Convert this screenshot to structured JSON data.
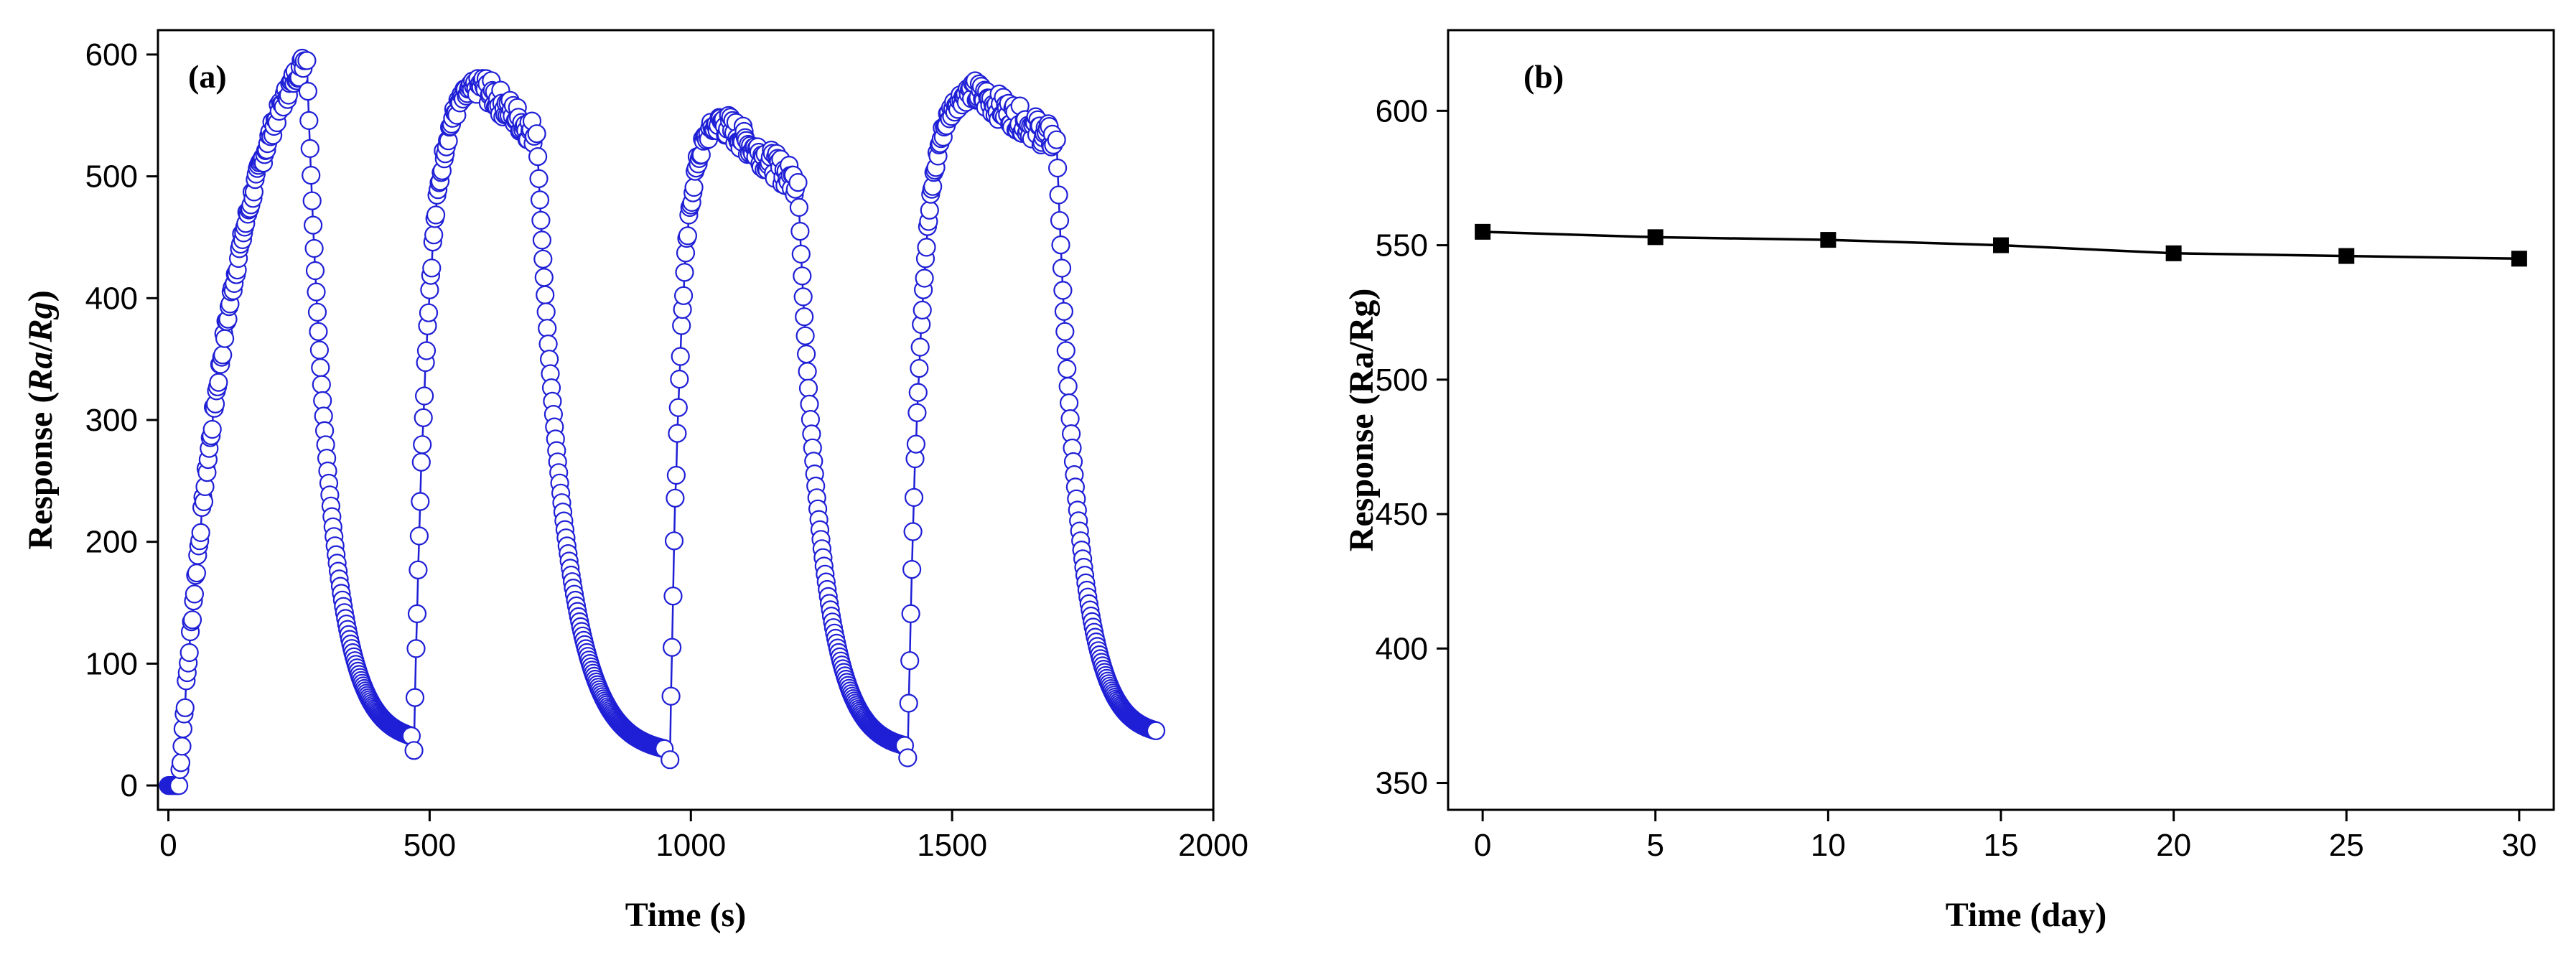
{
  "colors": {
    "series_a": "#1f1fd6",
    "series_b": "#000000",
    "axis": "#000000",
    "background": "#ffffff"
  },
  "chart_data": [
    {
      "id": "a",
      "type": "scatter",
      "panel_label": "(a)",
      "xlabel": "Time (s)",
      "ylabel_parts": [
        "Response (",
        "Ra",
        "/",
        "Rg",
        ")"
      ],
      "xlim": [
        -20,
        2000
      ],
      "ylim": [
        -20,
        620
      ],
      "xticks": [
        0,
        500,
        1000,
        1500,
        2000
      ],
      "yticks": [
        0,
        100,
        200,
        300,
        400,
        500,
        600
      ],
      "xtick_labels": [
        "0",
        "500",
        "1000",
        "1500",
        "2000"
      ],
      "ytick_labels": [
        "0",
        "100",
        "200",
        "300",
        "400",
        "500",
        "600"
      ],
      "marker": "open-circle",
      "series": [
        {
          "name": "response",
          "cycles": [
            {
              "inject_on": 20,
              "peak_time": 260,
              "peak": 595,
              "release": 265,
              "end": 465,
              "baseline_end": 35,
              "rise_shape": "linear-ish"
            },
            {
              "inject_on": 470,
              "peak_time": 600,
              "peak": 575,
              "plateau_end": 700,
              "plateau_drop": 40,
              "release": 705,
              "end": 950,
              "baseline_end": 25
            },
            {
              "inject_on": 960,
              "peak_time": 1060,
              "peak": 545,
              "plateau_end": 1200,
              "plateau_drop": 50,
              "release": 1205,
              "end": 1410,
              "baseline_end": 28
            },
            {
              "inject_on": 1415,
              "peak_time": 1540,
              "peak": 570,
              "plateau_end": 1695,
              "plateau_drop": 40,
              "release": 1700,
              "end": 1890,
              "baseline_end": 40
            }
          ],
          "sample_interval_s": 2,
          "initial_baseline": 0
        }
      ]
    },
    {
      "id": "b",
      "type": "line",
      "panel_label": "(b)",
      "xlabel": "Time (day)",
      "ylabel": "Response (Ra/Rg)",
      "xlim": [
        -1,
        31
      ],
      "ylim": [
        340,
        630
      ],
      "xticks": [
        0,
        5,
        10,
        15,
        20,
        25,
        30
      ],
      "yticks": [
        350,
        400,
        450,
        500,
        550,
        600
      ],
      "xtick_labels": [
        "0",
        "5",
        "10",
        "15",
        "20",
        "25",
        "30"
      ],
      "ytick_labels": [
        "350",
        "400",
        "450",
        "500",
        "550",
        "600"
      ],
      "marker": "filled-square",
      "series": [
        {
          "name": "response",
          "x": [
            0,
            5,
            10,
            15,
            20,
            25,
            30
          ],
          "values": [
            555,
            553,
            552,
            550,
            547,
            546,
            545
          ]
        }
      ]
    }
  ]
}
